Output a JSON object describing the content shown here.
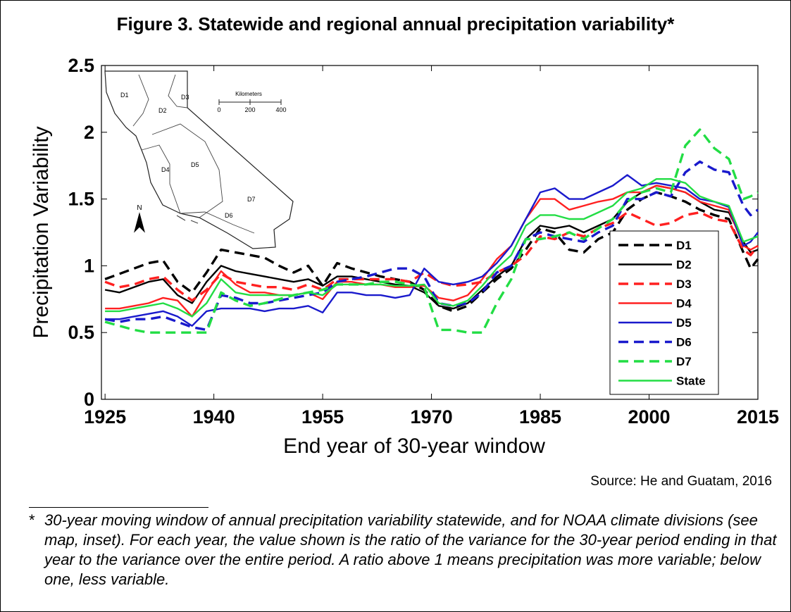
{
  "figure": {
    "title": "Figure 3. Statewide and regional annual precipitation variability*",
    "source": "Source: He and Guatam, 2016",
    "footnote_marker": "*",
    "footnote": "30-year moving window of annual precipitation variability statewide, and for NOAA climate divisions (see map, inset). For each year, the value shown is the ratio of the variance for the 30-year period ending in that year to the variance over the entire period. A ratio above 1 means precipitation was more variable; below one, less variable."
  },
  "inset_map": {
    "division_labels": [
      "D1",
      "D2",
      "D3",
      "D4",
      "D5",
      "D6",
      "D7"
    ],
    "scale_title": "Kilometers",
    "scale_ticks": [
      "0",
      "200",
      "400"
    ],
    "north_label": "N"
  },
  "chart_data": {
    "type": "line",
    "title": "",
    "xlabel": "End year of 30-year window",
    "ylabel": "Precipitation Variability",
    "xlim": [
      1924.5,
      2015
    ],
    "ylim": [
      0,
      2.5
    ],
    "xticks": [
      1925,
      1940,
      1955,
      1970,
      1985,
      2000,
      2015
    ],
    "yticks": [
      0,
      0.5,
      1,
      1.5,
      2,
      2.5
    ],
    "ytick_labels": [
      "0",
      "0.5",
      "1",
      "1.5",
      "2",
      "2.5"
    ],
    "grid": false,
    "legend_position": "lower-right",
    "series": [
      {
        "name": "D1",
        "color": "#000000",
        "dash": "dashed",
        "x": [
          1925,
          1927,
          1929,
          1931,
          1933,
          1935,
          1937,
          1939,
          1941,
          1943,
          1945,
          1947,
          1949,
          1951,
          1953,
          1955,
          1957,
          1959,
          1961,
          1963,
          1965,
          1967,
          1969,
          1971,
          1973,
          1975,
          1977,
          1979,
          1981,
          1983,
          1985,
          1987,
          1989,
          1991,
          1993,
          1995,
          1997,
          1999,
          2001,
          2003,
          2005,
          2007,
          2009,
          2011,
          2013,
          2014,
          2015
        ],
        "values": [
          0.9,
          0.94,
          0.98,
          1.02,
          1.04,
          0.88,
          0.8,
          0.95,
          1.12,
          1.1,
          1.08,
          1.06,
          1.0,
          0.95,
          1.0,
          0.85,
          1.02,
          0.98,
          0.95,
          0.92,
          0.9,
          0.88,
          0.82,
          0.7,
          0.66,
          0.7,
          0.8,
          0.9,
          0.98,
          1.12,
          1.28,
          1.25,
          1.12,
          1.1,
          1.2,
          1.25,
          1.42,
          1.5,
          1.55,
          1.52,
          1.48,
          1.42,
          1.38,
          1.35,
          1.1,
          0.98,
          1.05
        ]
      },
      {
        "name": "D2",
        "color": "#000000",
        "dash": "solid",
        "x": [
          1925,
          1927,
          1929,
          1931,
          1933,
          1935,
          1937,
          1939,
          1941,
          1943,
          1945,
          1947,
          1949,
          1951,
          1953,
          1955,
          1957,
          1959,
          1961,
          1963,
          1965,
          1967,
          1969,
          1971,
          1973,
          1975,
          1977,
          1979,
          1981,
          1983,
          1985,
          1987,
          1989,
          1991,
          1993,
          1995,
          1997,
          1999,
          2001,
          2003,
          2005,
          2007,
          2009,
          2011,
          2013,
          2014,
          2015
        ],
        "values": [
          0.82,
          0.8,
          0.84,
          0.88,
          0.9,
          0.78,
          0.72,
          0.88,
          1.0,
          0.96,
          0.94,
          0.92,
          0.9,
          0.88,
          0.9,
          0.85,
          0.92,
          0.92,
          0.9,
          0.88,
          0.86,
          0.85,
          0.8,
          0.7,
          0.68,
          0.72,
          0.82,
          0.92,
          1.0,
          1.2,
          1.3,
          1.28,
          1.3,
          1.25,
          1.3,
          1.35,
          1.48,
          1.55,
          1.6,
          1.58,
          1.55,
          1.48,
          1.42,
          1.4,
          1.18,
          1.1,
          1.12
        ]
      },
      {
        "name": "D3",
        "color": "#ff2020",
        "dash": "dashed",
        "x": [
          1925,
          1927,
          1929,
          1931,
          1933,
          1935,
          1937,
          1939,
          1941,
          1943,
          1945,
          1947,
          1949,
          1951,
          1953,
          1955,
          1957,
          1959,
          1961,
          1963,
          1965,
          1967,
          1969,
          1971,
          1973,
          1975,
          1977,
          1979,
          1981,
          1983,
          1985,
          1987,
          1989,
          1991,
          1993,
          1995,
          1997,
          1999,
          2001,
          2003,
          2005,
          2007,
          2009,
          2011,
          2013,
          2014,
          2015
        ],
        "values": [
          0.88,
          0.84,
          0.86,
          0.9,
          0.92,
          0.82,
          0.74,
          0.82,
          0.94,
          0.88,
          0.86,
          0.84,
          0.84,
          0.82,
          0.86,
          0.82,
          0.9,
          0.9,
          0.9,
          0.9,
          0.9,
          0.88,
          0.95,
          0.88,
          0.85,
          0.86,
          0.88,
          0.95,
          1.0,
          1.08,
          1.22,
          1.2,
          1.25,
          1.22,
          1.28,
          1.32,
          1.4,
          1.35,
          1.3,
          1.32,
          1.38,
          1.4,
          1.35,
          1.33,
          1.12,
          1.08,
          1.15
        ]
      },
      {
        "name": "D4",
        "color": "#ff2020",
        "dash": "solid",
        "x": [
          1925,
          1927,
          1929,
          1931,
          1933,
          1935,
          1937,
          1939,
          1941,
          1943,
          1945,
          1947,
          1949,
          1951,
          1953,
          1955,
          1957,
          1959,
          1961,
          1963,
          1965,
          1967,
          1969,
          1971,
          1973,
          1975,
          1977,
          1979,
          1981,
          1983,
          1985,
          1987,
          1989,
          1991,
          1993,
          1995,
          1997,
          1999,
          2001,
          2003,
          2005,
          2007,
          2009,
          2011,
          2013,
          2014,
          2015
        ],
        "values": [
          0.68,
          0.68,
          0.7,
          0.72,
          0.76,
          0.74,
          0.62,
          0.8,
          0.96,
          0.86,
          0.8,
          0.8,
          0.78,
          0.78,
          0.8,
          0.75,
          0.88,
          0.88,
          0.86,
          0.86,
          0.84,
          0.84,
          0.85,
          0.76,
          0.74,
          0.78,
          0.9,
          1.05,
          1.15,
          1.35,
          1.5,
          1.5,
          1.42,
          1.45,
          1.48,
          1.5,
          1.55,
          1.55,
          1.6,
          1.58,
          1.55,
          1.48,
          1.45,
          1.42,
          1.15,
          1.12,
          1.15
        ]
      },
      {
        "name": "D5",
        "color": "#1a1acc",
        "dash": "solid",
        "x": [
          1925,
          1927,
          1929,
          1931,
          1933,
          1935,
          1937,
          1939,
          1941,
          1943,
          1945,
          1947,
          1949,
          1951,
          1953,
          1955,
          1957,
          1959,
          1961,
          1963,
          1965,
          1967,
          1969,
          1971,
          1973,
          1975,
          1977,
          1979,
          1981,
          1983,
          1985,
          1987,
          1989,
          1991,
          1993,
          1995,
          1997,
          1999,
          2001,
          2003,
          2005,
          2007,
          2009,
          2011,
          2013,
          2014,
          2015
        ],
        "values": [
          0.6,
          0.6,
          0.62,
          0.64,
          0.66,
          0.62,
          0.55,
          0.66,
          0.68,
          0.68,
          0.68,
          0.66,
          0.68,
          0.68,
          0.7,
          0.65,
          0.8,
          0.8,
          0.78,
          0.78,
          0.76,
          0.78,
          0.98,
          0.88,
          0.86,
          0.88,
          0.92,
          1.02,
          1.15,
          1.35,
          1.55,
          1.58,
          1.5,
          1.5,
          1.55,
          1.6,
          1.68,
          1.6,
          1.62,
          1.6,
          1.58,
          1.5,
          1.48,
          1.44,
          1.15,
          1.18,
          1.25
        ]
      },
      {
        "name": "D6",
        "color": "#1a1acc",
        "dash": "dashed",
        "x": [
          1925,
          1927,
          1929,
          1931,
          1933,
          1935,
          1937,
          1939,
          1941,
          1943,
          1945,
          1947,
          1949,
          1951,
          1953,
          1955,
          1957,
          1959,
          1961,
          1963,
          1965,
          1967,
          1969,
          1971,
          1973,
          1975,
          1977,
          1979,
          1981,
          1983,
          1985,
          1987,
          1989,
          1991,
          1993,
          1995,
          1997,
          1999,
          2001,
          2003,
          2005,
          2007,
          2009,
          2011,
          2013,
          2014,
          2015
        ],
        "values": [
          0.6,
          0.58,
          0.6,
          0.6,
          0.62,
          0.58,
          0.54,
          0.52,
          0.78,
          0.76,
          0.72,
          0.72,
          0.74,
          0.76,
          0.78,
          0.8,
          0.88,
          0.9,
          0.92,
          0.95,
          0.98,
          0.98,
          0.92,
          0.72,
          0.7,
          0.72,
          0.8,
          0.95,
          1.0,
          1.2,
          1.25,
          1.22,
          1.2,
          1.18,
          1.25,
          1.3,
          1.5,
          1.5,
          1.55,
          1.52,
          1.7,
          1.78,
          1.72,
          1.7,
          1.45,
          1.38,
          1.42
        ]
      },
      {
        "name": "D7",
        "color": "#22dd44",
        "dash": "dashed",
        "x": [
          1925,
          1927,
          1929,
          1931,
          1933,
          1935,
          1937,
          1939,
          1941,
          1943,
          1945,
          1947,
          1949,
          1951,
          1953,
          1955,
          1957,
          1959,
          1961,
          1963,
          1965,
          1967,
          1969,
          1971,
          1973,
          1975,
          1977,
          1979,
          1981,
          1983,
          1985,
          1987,
          1989,
          1991,
          1993,
          1995,
          1997,
          1999,
          2001,
          2003,
          2005,
          2007,
          2009,
          2011,
          2013,
          2014,
          2015
        ],
        "values": [
          0.58,
          0.55,
          0.52,
          0.5,
          0.5,
          0.5,
          0.5,
          0.5,
          0.8,
          0.74,
          0.7,
          0.72,
          0.75,
          0.78,
          0.8,
          0.82,
          0.86,
          0.86,
          0.86,
          0.88,
          0.88,
          0.86,
          0.84,
          0.52,
          0.52,
          0.5,
          0.5,
          0.72,
          0.9,
          1.2,
          1.2,
          1.22,
          1.25,
          1.2,
          1.28,
          1.35,
          1.48,
          1.55,
          1.58,
          1.55,
          1.9,
          2.02,
          1.88,
          1.8,
          1.5,
          1.52,
          1.55
        ]
      },
      {
        "name": "State",
        "color": "#22dd44",
        "dash": "solid",
        "x": [
          1925,
          1927,
          1929,
          1931,
          1933,
          1935,
          1937,
          1939,
          1941,
          1943,
          1945,
          1947,
          1949,
          1951,
          1953,
          1955,
          1957,
          1959,
          1961,
          1963,
          1965,
          1967,
          1969,
          1971,
          1973,
          1975,
          1977,
          1979,
          1981,
          1983,
          1985,
          1987,
          1989,
          1991,
          1993,
          1995,
          1997,
          1999,
          2001,
          2003,
          2005,
          2007,
          2009,
          2011,
          2013,
          2014,
          2015
        ],
        "values": [
          0.66,
          0.66,
          0.68,
          0.7,
          0.72,
          0.68,
          0.62,
          0.72,
          0.9,
          0.8,
          0.78,
          0.78,
          0.78,
          0.78,
          0.8,
          0.78,
          0.86,
          0.86,
          0.86,
          0.86,
          0.85,
          0.85,
          0.86,
          0.72,
          0.7,
          0.74,
          0.85,
          0.98,
          1.08,
          1.3,
          1.38,
          1.38,
          1.35,
          1.35,
          1.4,
          1.45,
          1.55,
          1.58,
          1.65,
          1.65,
          1.62,
          1.52,
          1.48,
          1.45,
          1.18,
          1.2,
          1.22
        ]
      }
    ]
  }
}
